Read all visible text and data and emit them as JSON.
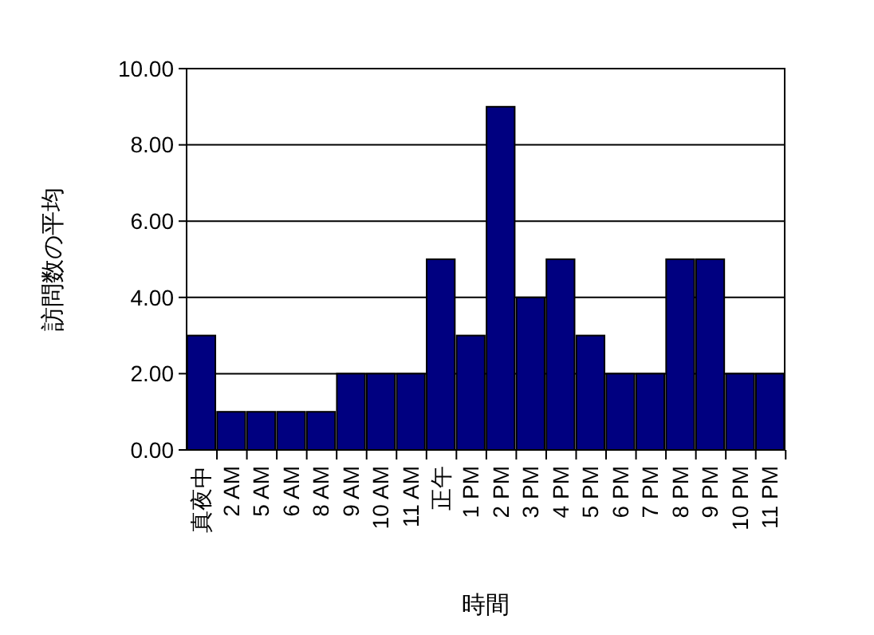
{
  "chart_data": {
    "type": "bar",
    "xlabel": "時間",
    "ylabel": "訪問数の平均",
    "categories": [
      "真夜中",
      "2 AM",
      "5 AM",
      "6 AM",
      "8 AM",
      "9 AM",
      "10 AM",
      "11 AM",
      "正午",
      "1 PM",
      "2 PM",
      "3 PM",
      "4 PM",
      "5 PM",
      "6 PM",
      "7 PM",
      "8 PM",
      "9 PM",
      "10 PM",
      "11 PM"
    ],
    "values": [
      3,
      1,
      1,
      1,
      1,
      2,
      2,
      2,
      5,
      3,
      9,
      4,
      5,
      3,
      2,
      2,
      5,
      5,
      2,
      2
    ],
    "color": "#000080",
    "ylim": [
      0,
      10
    ],
    "yticks": [
      {
        "value": 0,
        "label": "0.00"
      },
      {
        "value": 2,
        "label": "2.00"
      },
      {
        "value": 4,
        "label": "4.00"
      },
      {
        "value": 6,
        "label": "6.00"
      },
      {
        "value": 8,
        "label": "8.00"
      },
      {
        "value": 10,
        "label": "10.00"
      }
    ],
    "grid": "y"
  }
}
